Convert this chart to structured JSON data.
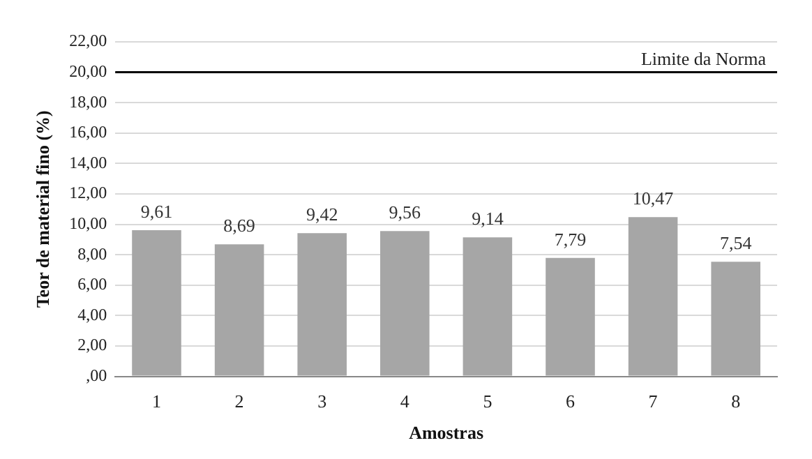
{
  "chart_data": {
    "type": "bar",
    "xlabel": "Amostras",
    "ylabel": "Teor de material fino (%)",
    "categories": [
      "1",
      "2",
      "3",
      "4",
      "5",
      "6",
      "7",
      "8"
    ],
    "values": [
      9.61,
      8.69,
      9.42,
      9.56,
      9.14,
      7.79,
      10.47,
      7.54
    ],
    "value_labels": [
      "9,61",
      "8,69",
      "9,42",
      "9,56",
      "9,14",
      "7,79",
      "10,47",
      "7,54"
    ],
    "color": "#a6a6a6",
    "ylim": [
      0,
      22
    ],
    "yticks": [
      {
        "value": 0,
        "label": ",00"
      },
      {
        "value": 2,
        "label": "2,00"
      },
      {
        "value": 4,
        "label": "4,00"
      },
      {
        "value": 6,
        "label": "6,00"
      },
      {
        "value": 8,
        "label": "8,00"
      },
      {
        "value": 10,
        "label": "10,00"
      },
      {
        "value": 12,
        "label": "12,00"
      },
      {
        "value": 14,
        "label": "14,00"
      },
      {
        "value": 16,
        "label": "16,00"
      },
      {
        "value": 18,
        "label": "18,00"
      },
      {
        "value": 20,
        "label": "20,00"
      },
      {
        "value": 22,
        "label": "22,00"
      }
    ],
    "ref_lines": [
      {
        "axis": "y",
        "value": 20,
        "label": "Limite da Norma",
        "color": "#000000"
      }
    ],
    "grid": "y",
    "legend": false
  }
}
